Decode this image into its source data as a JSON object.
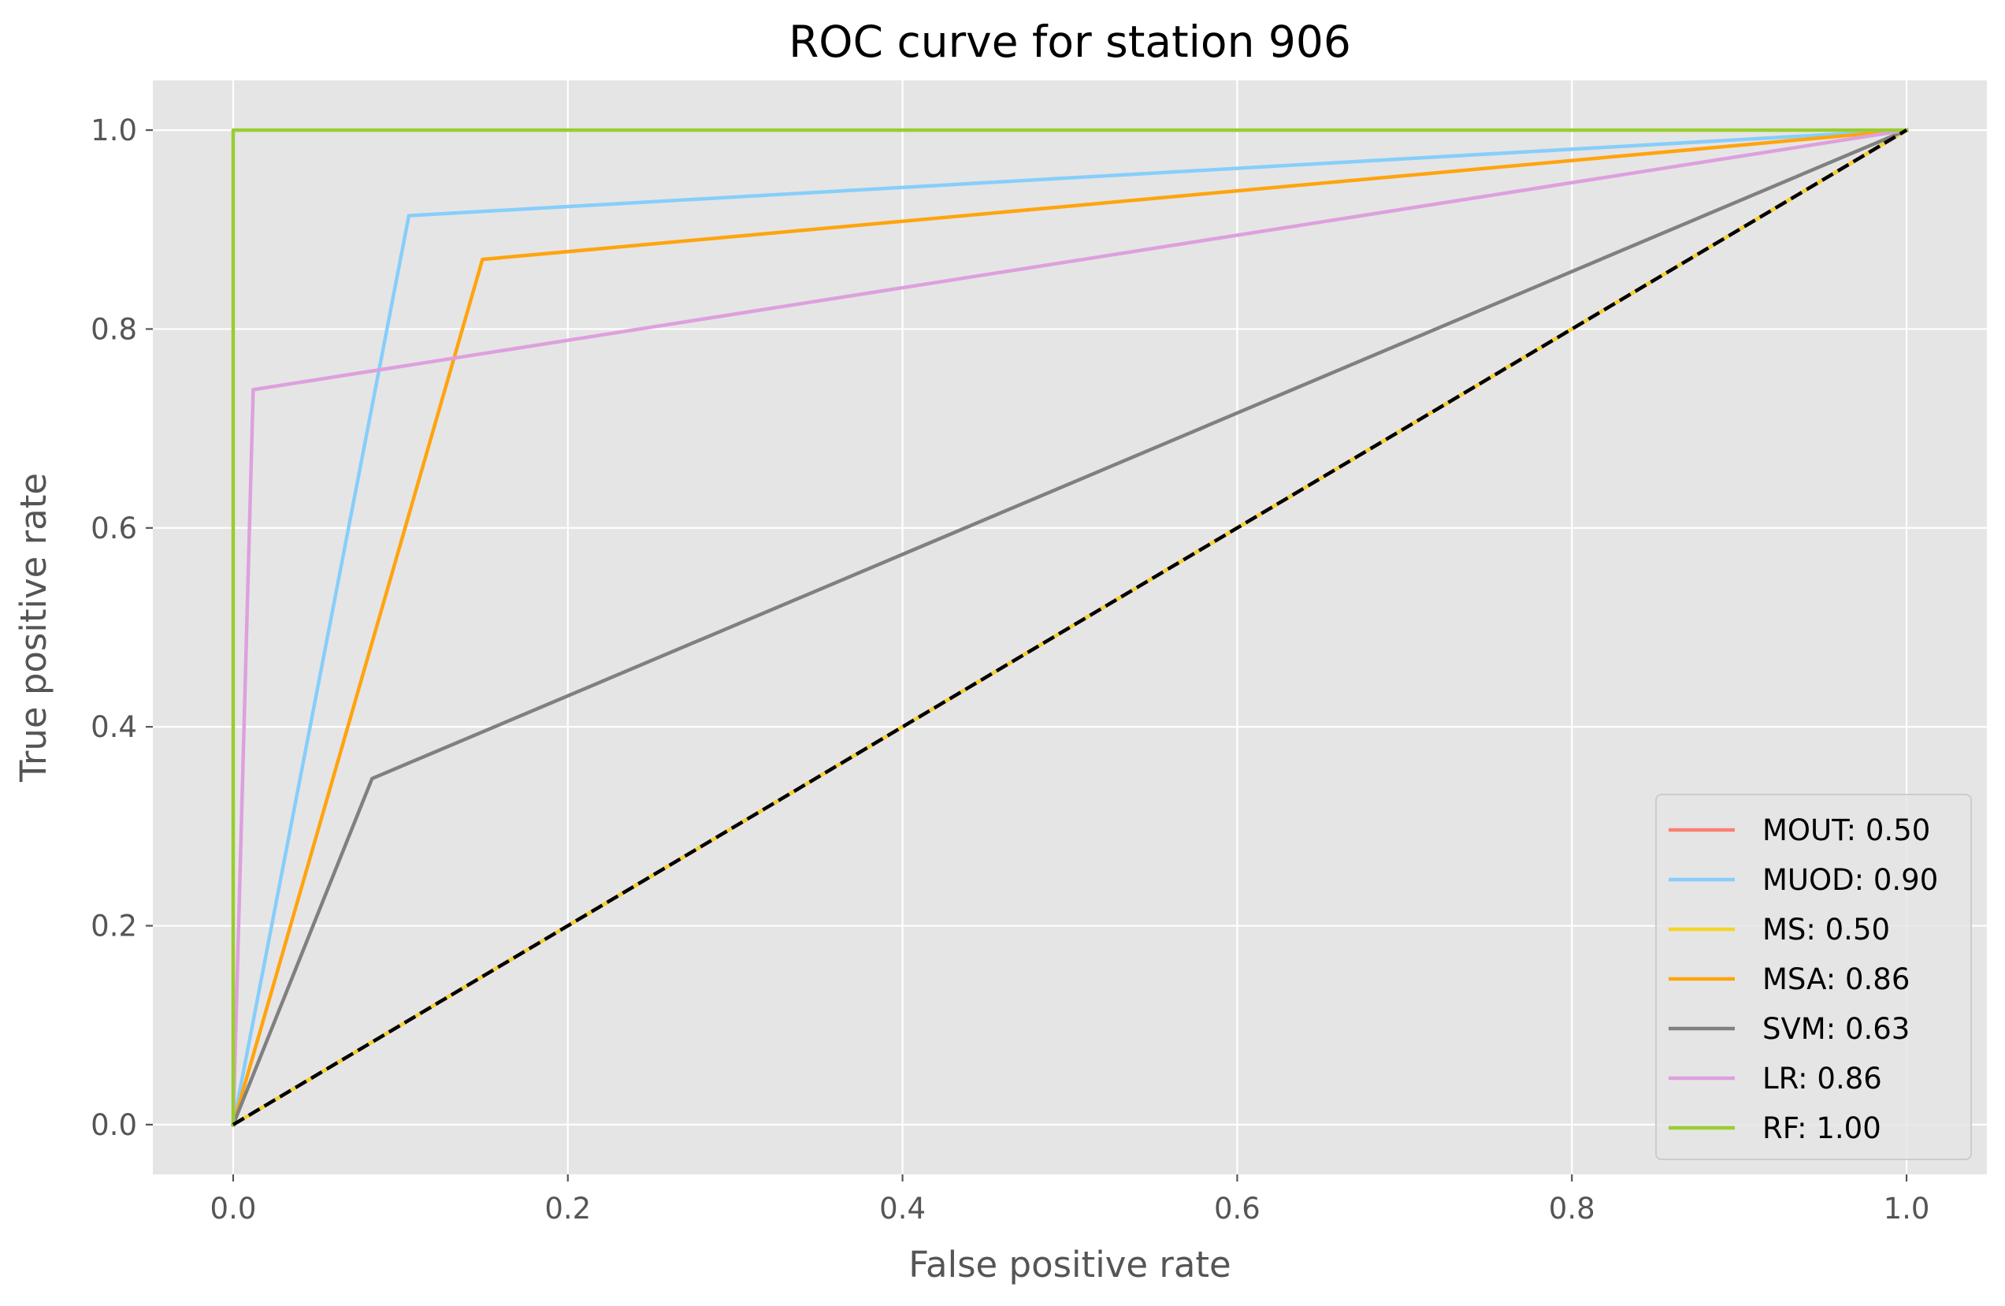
{
  "chart_data": {
    "type": "line",
    "title": "ROC curve for station 906",
    "xlabel": "False positive rate",
    "ylabel": "True positive rate",
    "xlim": [
      -0.048,
      1.048
    ],
    "ylim": [
      -0.05,
      1.05
    ],
    "xticks": [
      {
        "value": 0.0,
        "label": "0.0"
      },
      {
        "value": 0.2,
        "label": "0.2"
      },
      {
        "value": 0.4,
        "label": "0.4"
      },
      {
        "value": 0.6,
        "label": "0.6"
      },
      {
        "value": 0.8,
        "label": "0.8"
      },
      {
        "value": 1.0,
        "label": "1.0"
      }
    ],
    "yticks": [
      {
        "value": 0.0,
        "label": "0.0"
      },
      {
        "value": 0.2,
        "label": "0.2"
      },
      {
        "value": 0.4,
        "label": "0.4"
      },
      {
        "value": 0.6,
        "label": "0.6"
      },
      {
        "value": 0.8,
        "label": "0.8"
      },
      {
        "value": 1.0,
        "label": "1.0"
      }
    ],
    "grid": true,
    "legend_position": "lower-right",
    "background_color": "#e5e5e5",
    "grid_color": "#ffffff",
    "series": [
      {
        "name": "MOUT: 0.50",
        "color": "#fa8072",
        "x": [
          0,
          1
        ],
        "y": [
          0,
          1
        ]
      },
      {
        "name": "MUOD: 0.90",
        "color": "#87cefa",
        "x": [
          0,
          0.105,
          1
        ],
        "y": [
          0,
          0.914,
          1
        ]
      },
      {
        "name": "MS: 0.50",
        "color": "#f5d328",
        "x": [
          0,
          1
        ],
        "y": [
          0,
          1
        ]
      },
      {
        "name": "MSA: 0.86",
        "color": "#ffa40f",
        "x": [
          0,
          0.149,
          1
        ],
        "y": [
          0,
          0.87,
          1
        ]
      },
      {
        "name": "SVM: 0.63",
        "color": "#808080",
        "x": [
          0,
          0.083,
          1
        ],
        "y": [
          0,
          0.348,
          1
        ]
      },
      {
        "name": "LR: 0.86",
        "color": "#dda0dd",
        "x": [
          0,
          0.012,
          1
        ],
        "y": [
          0,
          0.739,
          1
        ]
      },
      {
        "name": "RF: 1.00",
        "color": "#9acd32",
        "x": [
          0,
          0,
          1
        ],
        "y": [
          0,
          1,
          1
        ]
      }
    ],
    "reference_line": {
      "color": "#000000",
      "style": "dashed",
      "x": [
        0,
        1
      ],
      "y": [
        0,
        1
      ]
    }
  }
}
